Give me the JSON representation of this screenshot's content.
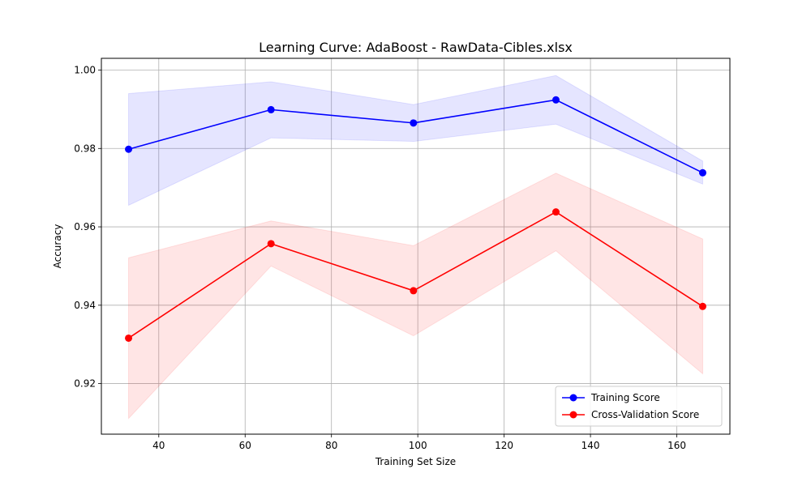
{
  "chart_data": {
    "type": "line",
    "title": "Learning Curve: AdaBoost - RawData-Cibles.xlsx",
    "xlabel": "Training Set Size",
    "ylabel": "Accuracy",
    "x": [
      33,
      66,
      99,
      132,
      166
    ],
    "xlim": [
      26.7,
      172.3
    ],
    "ylim": [
      0.9071,
      1.003
    ],
    "xticks": [
      40,
      60,
      80,
      100,
      120,
      140,
      160
    ],
    "yticks": [
      0.92,
      0.94,
      0.96,
      0.98,
      1.0
    ],
    "ytick_labels": [
      "0.92",
      "0.94",
      "0.96",
      "0.98",
      "1.00"
    ],
    "grid": true,
    "legend_position": "lower right",
    "series": [
      {
        "name": "Training Score",
        "color": "#0000ff",
        "values": [
          0.9798,
          0.9899,
          0.9865,
          0.9924,
          0.9738
        ],
        "band_lower": [
          0.9655,
          0.9827,
          0.9818,
          0.9862,
          0.9709
        ],
        "band_upper": [
          0.994,
          0.997,
          0.9912,
          0.9986,
          0.9768
        ]
      },
      {
        "name": "Cross-Validation Score",
        "color": "#ff0000",
        "values": [
          0.9316,
          0.9557,
          0.9437,
          0.9638,
          0.9397
        ],
        "band_lower": [
          0.9111,
          0.95,
          0.9322,
          0.9539,
          0.9225
        ],
        "band_upper": [
          0.9521,
          0.9615,
          0.9552,
          0.9737,
          0.9569
        ]
      }
    ]
  }
}
